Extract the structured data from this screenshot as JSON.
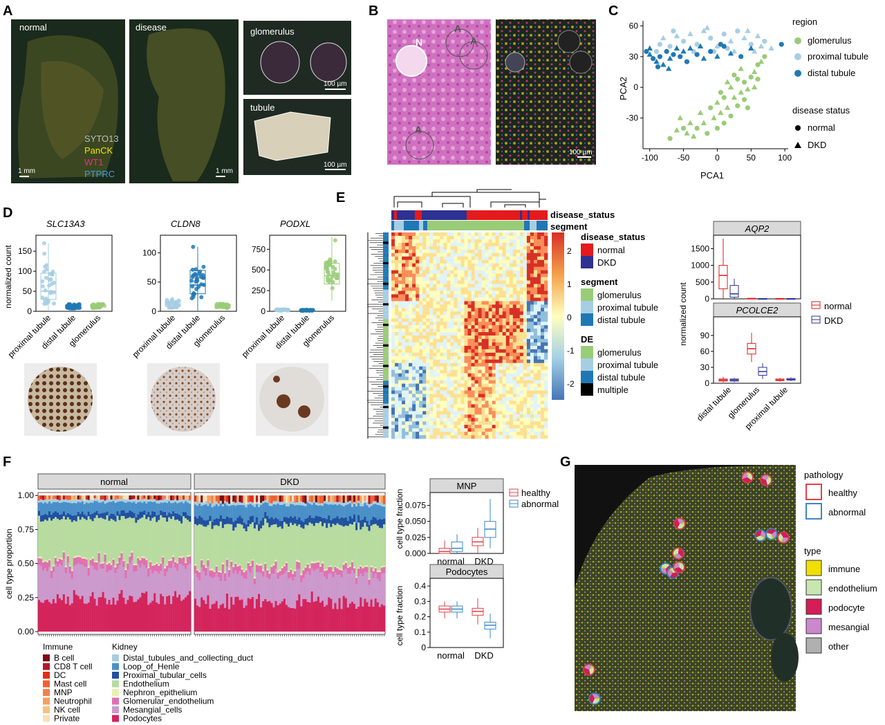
{
  "panels": {
    "A": {
      "letter": "A",
      "normal_label": "normal",
      "disease_label": "disease",
      "glomerulus_label": "glomerulus",
      "tubule_label": "tubule",
      "stain_legend": [
        "SYTO13",
        "PanCK",
        "WT1",
        "PTPRC"
      ],
      "stain_colors": [
        "#bdbdbd",
        "#f0e000",
        "#e8307a",
        "#3aa0e0"
      ],
      "scale_1mm": "1 mm",
      "scale_100um": "100 µm"
    },
    "B": {
      "letter": "B",
      "annot_N": "N",
      "annot_A": "A",
      "scale_100um": "100 µm"
    },
    "C": {
      "letter": "C",
      "legend_region_title": "region",
      "legend_regions": [
        "glomerulus",
        "proximal tubule",
        "distal tubule"
      ],
      "legend_status_title": "disease status",
      "legend_status": [
        "normal",
        "DKD"
      ]
    },
    "D": {
      "letter": "D",
      "genes": [
        "SLC13A3",
        "CLDN8",
        "PODXL"
      ],
      "ylabel": "normalized count",
      "categories": [
        "proximal tubule",
        "distal tubule",
        "glomerulus"
      ]
    },
    "E": {
      "letter": "E",
      "row_disease": "disease_status",
      "row_segment": "segment",
      "legend_disease_title": "disease_status",
      "legend_disease": [
        "normal",
        "DKD"
      ],
      "legend_segment_title": "segment",
      "legend_segment": [
        "glomerulus",
        "proximal tubule",
        "distal tubule"
      ],
      "legend_de_title": "DE",
      "legend_de": [
        "glomerulus",
        "proximal tubule",
        "distal tubule",
        "multiple"
      ],
      "colorbar_ticks": [
        "2",
        "1",
        "0",
        "-1",
        "-2"
      ],
      "box_ylabel": "normalized count",
      "box_legend": [
        "normal",
        "DKD"
      ]
    },
    "F": {
      "letter": "F",
      "facet_normal": "normal",
      "facet_dkd": "DKD",
      "ylabel": "cell type proportion",
      "legend_immune_title": "Immune",
      "legend_immune": [
        "B cell",
        "CD8 T cell",
        "DC",
        "Mast cell",
        "MNP",
        "Neutrophil",
        "NK cell",
        "Private"
      ],
      "legend_kidney_title": "Kidney",
      "legend_kidney": [
        "Distal_tubules_and_collecting_duct",
        "Loop_of_Henle",
        "Proximal_tubular_cells",
        "Endothelium",
        "Nephron_epithelium",
        "Glomerular_endothelium",
        "Mesangial_cells",
        "Podocytes"
      ],
      "small_ylabel": "cell type fraction",
      "small_xcats": [
        "normal",
        "DKD"
      ],
      "small_legend": [
        "healthy",
        "abnormal"
      ]
    },
    "G": {
      "letter": "G",
      "legend_pathology_title": "pathology",
      "legend_pathology": [
        "healthy",
        "abnormal"
      ],
      "legend_type_title": "type",
      "legend_type": [
        "immune",
        "endothelium",
        "podocyte",
        "mesangial",
        "other"
      ]
    }
  },
  "colors": {
    "glom": "#99cc77",
    "prox": "#a6cee3",
    "dist": "#1f78b4",
    "normal_red": "#e41a1c",
    "dkd_blue": "#2e3192",
    "healthy_red": "#e0404a",
    "abnormal_blue": "#3a86c8",
    "immune": [
      "#7a0c12",
      "#b2182b",
      "#e0301e",
      "#f06030",
      "#f08050",
      "#f4a060",
      "#f8c080",
      "#fce0b8"
    ],
    "kidney": [
      "#a6cee3",
      "#4a90c8",
      "#2050a0",
      "#b8dba0",
      "#e8f0b0",
      "#e070b0",
      "#cc99cc",
      "#d4245c"
    ],
    "type_colors": [
      "#f0e000",
      "#c8e6b0",
      "#d41c58",
      "#cc88cc",
      "#b0b0b0"
    ]
  },
  "chart_data": [
    {
      "panel": "C",
      "type": "scatter",
      "xlabel": "PCA1",
      "ylabel": "PCA2",
      "xlim": [
        -110,
        105
      ],
      "ylim": [
        -60,
        65
      ],
      "xticks": [
        -100,
        -50,
        0,
        50,
        100
      ],
      "yticks": [
        -30,
        0,
        30,
        60
      ],
      "series": [
        {
          "name": "glomerulus",
          "points": [
            [
              -70,
              -50
            ],
            [
              -45,
              -45
            ],
            [
              -30,
              -40
            ],
            [
              -20,
              -35
            ],
            [
              -15,
              -45
            ],
            [
              -5,
              -30
            ],
            [
              0,
              -40
            ],
            [
              5,
              -25
            ],
            [
              10,
              -35
            ],
            [
              15,
              -20
            ],
            [
              20,
              -28
            ],
            [
              25,
              -10
            ],
            [
              30,
              -18
            ],
            [
              35,
              -5
            ],
            [
              40,
              5
            ],
            [
              45,
              -2
            ],
            [
              50,
              10
            ],
            [
              55,
              15
            ],
            [
              60,
              22
            ],
            [
              65,
              25
            ],
            [
              70,
              30
            ],
            [
              -25,
              -25
            ],
            [
              -10,
              -20
            ],
            [
              0,
              -15
            ],
            [
              10,
              -10
            ],
            [
              20,
              0
            ],
            [
              30,
              8
            ],
            [
              -40,
              -35
            ],
            [
              -50,
              -40
            ],
            [
              -35,
              -48
            ],
            [
              5,
              -5
            ],
            [
              15,
              5
            ],
            [
              25,
              12
            ],
            [
              35,
              18
            ],
            [
              40,
              -12
            ],
            [
              -60,
              -42
            ],
            [
              45,
              -20
            ],
            [
              55,
              0
            ],
            [
              60,
              8
            ],
            [
              -55,
              -30
            ]
          ]
        },
        {
          "name": "proximal tubule",
          "points": [
            [
              -90,
              35
            ],
            [
              -80,
              48
            ],
            [
              -70,
              40
            ],
            [
              -60,
              50
            ],
            [
              -50,
              45
            ],
            [
              -40,
              52
            ],
            [
              -30,
              42
            ],
            [
              -20,
              55
            ],
            [
              -10,
              48
            ],
            [
              0,
              40
            ],
            [
              10,
              52
            ],
            [
              20,
              45
            ],
            [
              30,
              55
            ],
            [
              40,
              48
            ],
            [
              50,
              42
            ],
            [
              60,
              50
            ],
            [
              70,
              45
            ],
            [
              80,
              38
            ],
            [
              -65,
              55
            ],
            [
              -15,
              58
            ],
            [
              15,
              38
            ],
            [
              45,
              55
            ],
            [
              -35,
              35
            ],
            [
              25,
              35
            ],
            [
              -85,
              42
            ],
            [
              55,
              35
            ],
            [
              -5,
              35
            ],
            [
              65,
              40
            ]
          ]
        },
        {
          "name": "distal tubule",
          "points": [
            [
              -105,
              35
            ],
            [
              -100,
              32
            ],
            [
              -95,
              28
            ],
            [
              -90,
              25
            ],
            [
              -85,
              30
            ],
            [
              -80,
              22
            ],
            [
              -75,
              35
            ],
            [
              -70,
              28
            ],
            [
              -65,
              32
            ],
            [
              -60,
              38
            ],
            [
              -55,
              30
            ],
            [
              -50,
              35
            ],
            [
              -45,
              25
            ],
            [
              -40,
              38
            ],
            [
              -30,
              32
            ],
            [
              -20,
              28
            ],
            [
              -10,
              35
            ],
            [
              0,
              30
            ],
            [
              10,
              40
            ],
            [
              20,
              33
            ],
            [
              35,
              30
            ],
            [
              50,
              38
            ],
            [
              95,
              42
            ],
            [
              -100,
              38
            ],
            [
              -88,
              20
            ],
            [
              -72,
              18
            ],
            [
              5,
              42
            ],
            [
              -25,
              40
            ]
          ]
        }
      ]
    },
    {
      "panel": "D",
      "type": "box",
      "series": [
        {
          "gene": "SLC13A3",
          "ylim": [
            0,
            190
          ],
          "yticks": [
            0,
            50,
            100,
            150
          ],
          "values": [
            {
              "q1": 30,
              "median": 50,
              "q3": 95,
              "lo": 0,
              "hi": 170
            },
            {
              "q1": 8,
              "median": 12,
              "q3": 16,
              "lo": 5,
              "hi": 20
            },
            {
              "q1": 10,
              "median": 13,
              "q3": 17,
              "lo": 5,
              "hi": 22
            }
          ]
        },
        {
          "gene": "CLDN8",
          "ylim": [
            0,
            130
          ],
          "yticks": [
            0,
            50,
            100
          ],
          "values": [
            {
              "q1": 8,
              "median": 12,
              "q3": 18,
              "lo": 4,
              "hi": 25
            },
            {
              "q1": 30,
              "median": 45,
              "q3": 70,
              "lo": 0,
              "hi": 110
            },
            {
              "q1": 6,
              "median": 9,
              "q3": 12,
              "lo": 3,
              "hi": 16
            }
          ]
        },
        {
          "gene": "PODXL",
          "ylim": [
            0,
            920
          ],
          "yticks": [
            0,
            250,
            500,
            750
          ],
          "values": [
            {
              "q1": 10,
              "median": 15,
              "q3": 20,
              "lo": 5,
              "hi": 30
            },
            {
              "q1": 8,
              "median": 12,
              "q3": 16,
              "lo": 4,
              "hi": 22
            },
            {
              "q1": 330,
              "median": 430,
              "q3": 580,
              "lo": 130,
              "hi": 900
            }
          ]
        }
      ]
    },
    {
      "panel": "E",
      "type": "box",
      "categories": [
        "distal tubule",
        "glomerulus",
        "proximal tubule"
      ],
      "series": [
        {
          "gene": "AQP2",
          "ylim": [
            0,
            1900
          ],
          "yticks": [
            0,
            500,
            1000,
            1500
          ],
          "normal": [
            {
              "q1": 300,
              "median": 700,
              "q3": 1000,
              "lo": 0,
              "hi": 1800
            },
            {
              "q1": 5,
              "median": 10,
              "q3": 15,
              "lo": 0,
              "hi": 20
            },
            {
              "q1": 3,
              "median": 6,
              "q3": 10,
              "lo": 0,
              "hi": 15
            }
          ],
          "DKD": [
            {
              "q1": 50,
              "median": 150,
              "q3": 400,
              "lo": 0,
              "hi": 600
            },
            {
              "q1": 3,
              "median": 5,
              "q3": 8,
              "lo": 0,
              "hi": 12
            },
            {
              "q1": 2,
              "median": 5,
              "q3": 8,
              "lo": 0,
              "hi": 12
            }
          ]
        },
        {
          "gene": "PCOLCE2",
          "ylim": [
            0,
            125
          ],
          "yticks": [
            0,
            30,
            60,
            90
          ],
          "normal": [
            {
              "q1": 4,
              "median": 6,
              "q3": 8,
              "lo": 2,
              "hi": 12
            },
            {
              "q1": 55,
              "median": 65,
              "q3": 75,
              "lo": 40,
              "hi": 95
            },
            {
              "q1": 5,
              "median": 6,
              "q3": 8,
              "lo": 3,
              "hi": 10
            }
          ],
          "DKD": [
            {
              "q1": 4,
              "median": 6,
              "q3": 8,
              "lo": 2,
              "hi": 10
            },
            {
              "q1": 15,
              "median": 22,
              "q3": 30,
              "lo": 8,
              "hi": 38
            },
            {
              "q1": 6,
              "median": 7,
              "q3": 9,
              "lo": 4,
              "hi": 11
            }
          ]
        }
      ]
    },
    {
      "panel": "F",
      "type": "bar",
      "yticks": [
        "0.00",
        "0.25",
        "0.50",
        "0.75",
        "1.00"
      ],
      "stack_order": [
        "Podocytes",
        "Mesangial_cells",
        "Glomerular_endothelium",
        "Nephron_epithelium",
        "Endothelium",
        "Proximal_tubular_cells",
        "Loop_of_Henle",
        "Distal_tubules_and_collecting_duct",
        "Immune"
      ],
      "mean_fractions_normal": [
        0.25,
        0.22,
        0.05,
        0.01,
        0.3,
        0.04,
        0.08,
        0.02,
        0.03
      ],
      "mean_fractions_dkd": [
        0.22,
        0.2,
        0.05,
        0.01,
        0.3,
        0.05,
        0.1,
        0.02,
        0.05
      ]
    },
    {
      "panel": "F",
      "type": "box",
      "title": "MNP",
      "ylim": [
        0,
        0.095
      ],
      "yticks": [
        "0.000",
        "0.025",
        "0.050",
        "0.075"
      ],
      "categories": [
        "normal",
        "DKD"
      ],
      "healthy": [
        {
          "q1": 0.0,
          "median": 0.003,
          "q3": 0.008,
          "lo": 0,
          "hi": 0.02
        },
        {
          "q1": 0.012,
          "median": 0.018,
          "q3": 0.025,
          "lo": 0,
          "hi": 0.04
        }
      ],
      "abnormal": [
        {
          "q1": 0.003,
          "median": 0.008,
          "q3": 0.018,
          "lo": 0,
          "hi": 0.03
        },
        {
          "q1": 0.025,
          "median": 0.038,
          "q3": 0.05,
          "lo": 0.008,
          "hi": 0.085
        }
      ]
    },
    {
      "panel": "F",
      "type": "box",
      "title": "Podocytes",
      "ylim": [
        0,
        0.45
      ],
      "yticks": [
        "0",
        "0.1",
        "0.2",
        "0.3",
        "0.4"
      ],
      "categories": [
        "normal",
        "DKD"
      ],
      "healthy": [
        {
          "q1": 0.23,
          "median": 0.25,
          "q3": 0.27,
          "lo": 0.19,
          "hi": 0.3
        },
        {
          "q1": 0.21,
          "median": 0.235,
          "q3": 0.255,
          "lo": 0.15,
          "hi": 0.32
        }
      ],
      "abnormal": [
        {
          "q1": 0.23,
          "median": 0.25,
          "q3": 0.27,
          "lo": 0.19,
          "hi": 0.3
        },
        {
          "q1": 0.12,
          "median": 0.145,
          "q3": 0.165,
          "lo": 0.06,
          "hi": 0.22
        }
      ]
    }
  ]
}
